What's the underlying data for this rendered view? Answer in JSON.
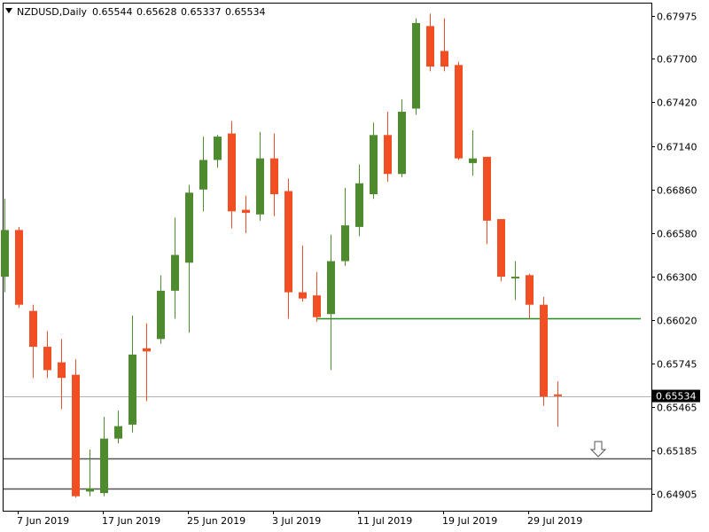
{
  "header": {
    "symbol_label": "NZDUSD,Daily",
    "open": "0.65544",
    "high": "0.65628",
    "low": "0.65337",
    "close": "0.65534"
  },
  "chart_data": {
    "type": "candlestick",
    "symbol": "NZDUSD",
    "timeframe": "Daily",
    "title": "NZDUSD,Daily",
    "ylim": [
      0.648,
      0.681
    ],
    "y_ticks": [
      0.67975,
      0.677,
      0.6742,
      0.6714,
      0.6686,
      0.6658,
      0.663,
      0.6602,
      0.65745,
      0.65465,
      0.65185,
      0.64905
    ],
    "y_tick_labels": [
      "0.67975",
      "0.67700",
      "0.67420",
      "0.67140",
      "0.66860",
      "0.66580",
      "0.66300",
      "0.66020",
      "0.65745",
      "0.65465",
      "0.65185",
      "0.64905"
    ],
    "x_tick_labels": [
      {
        "label": "7 Jun 2019",
        "bar": 1
      },
      {
        "label": "17 Jun 2019",
        "bar": 7
      },
      {
        "label": "25 Jun 2019",
        "bar": 13
      },
      {
        "label": "3 Jul 2019",
        "bar": 19
      },
      {
        "label": "11 Jul 2019",
        "bar": 25
      },
      {
        "label": "19 Jul 2019",
        "bar": 31
      },
      {
        "label": "29 Jul 2019",
        "bar": 37
      }
    ],
    "bull_color": "#4e8a2e",
    "bear_color": "#f24e23",
    "candles": [
      {
        "o": 0.663,
        "h": 0.668,
        "l": 0.662,
        "c": 0.666
      },
      {
        "o": 0.666,
        "h": 0.6662,
        "l": 0.661,
        "c": 0.6612
      },
      {
        "o": 0.6608,
        "h": 0.6612,
        "l": 0.6565,
        "c": 0.6585
      },
      {
        "o": 0.6585,
        "h": 0.6595,
        "l": 0.6565,
        "c": 0.657
      },
      {
        "o": 0.6575,
        "h": 0.659,
        "l": 0.6545,
        "c": 0.6565
      },
      {
        "o": 0.6567,
        "h": 0.6577,
        "l": 0.6488,
        "c": 0.6489
      },
      {
        "o": 0.6492,
        "h": 0.6519,
        "l": 0.6489,
        "c": 0.6494
      },
      {
        "o": 0.6491,
        "h": 0.654,
        "l": 0.6489,
        "c": 0.6526
      },
      {
        "o": 0.6526,
        "h": 0.6544,
        "l": 0.6523,
        "c": 0.6534
      },
      {
        "o": 0.6535,
        "h": 0.6605,
        "l": 0.653,
        "c": 0.658
      },
      {
        "o": 0.6584,
        "h": 0.66,
        "l": 0.655,
        "c": 0.6582
      },
      {
        "o": 0.659,
        "h": 0.6631,
        "l": 0.6587,
        "c": 0.6621
      },
      {
        "o": 0.6621,
        "h": 0.6668,
        "l": 0.6603,
        "c": 0.6644
      },
      {
        "o": 0.6639,
        "h": 0.6689,
        "l": 0.6594,
        "c": 0.6684
      },
      {
        "o": 0.6686,
        "h": 0.672,
        "l": 0.6672,
        "c": 0.6705
      },
      {
        "o": 0.6705,
        "h": 0.6721,
        "l": 0.67,
        "c": 0.672
      },
      {
        "o": 0.6722,
        "h": 0.673,
        "l": 0.6661,
        "c": 0.6672
      },
      {
        "o": 0.6673,
        "h": 0.6682,
        "l": 0.6658,
        "c": 0.6671
      },
      {
        "o": 0.667,
        "h": 0.6723,
        "l": 0.6666,
        "c": 0.6706
      },
      {
        "o": 0.6706,
        "h": 0.6722,
        "l": 0.6669,
        "c": 0.6683
      },
      {
        "o": 0.6685,
        "h": 0.6693,
        "l": 0.6603,
        "c": 0.662
      },
      {
        "o": 0.662,
        "h": 0.665,
        "l": 0.6614,
        "c": 0.6616
      },
      {
        "o": 0.6618,
        "h": 0.6633,
        "l": 0.6601,
        "c": 0.6604
      },
      {
        "o": 0.6606,
        "h": 0.6657,
        "l": 0.657,
        "c": 0.664
      },
      {
        "o": 0.664,
        "h": 0.6687,
        "l": 0.6637,
        "c": 0.6663
      },
      {
        "o": 0.6662,
        "h": 0.6702,
        "l": 0.6656,
        "c": 0.669
      },
      {
        "o": 0.6683,
        "h": 0.6729,
        "l": 0.668,
        "c": 0.6721
      },
      {
        "o": 0.6721,
        "h": 0.6736,
        "l": 0.6691,
        "c": 0.6696
      },
      {
        "o": 0.6696,
        "h": 0.6744,
        "l": 0.6694,
        "c": 0.6736
      },
      {
        "o": 0.6738,
        "h": 0.6796,
        "l": 0.6734,
        "c": 0.6793
      },
      {
        "o": 0.6791,
        "h": 0.6799,
        "l": 0.6762,
        "c": 0.6765
      },
      {
        "o": 0.6775,
        "h": 0.6796,
        "l": 0.6762,
        "c": 0.6765
      },
      {
        "o": 0.6766,
        "h": 0.6768,
        "l": 0.6705,
        "c": 0.6706
      },
      {
        "o": 0.6703,
        "h": 0.6724,
        "l": 0.6695,
        "c": 0.6706
      },
      {
        "o": 0.6707,
        "h": 0.6707,
        "l": 0.6651,
        "c": 0.6666
      },
      {
        "o": 0.6667,
        "h": 0.6667,
        "l": 0.6627,
        "c": 0.663
      },
      {
        "o": 0.663,
        "h": 0.664,
        "l": 0.6615,
        "c": 0.663
      },
      {
        "o": 0.6631,
        "h": 0.6632,
        "l": 0.6603,
        "c": 0.6612
      },
      {
        "o": 0.6612,
        "h": 0.6617,
        "l": 0.6547,
        "c": 0.6553
      },
      {
        "o": 0.65544,
        "h": 0.65628,
        "l": 0.65337,
        "c": 0.65534
      }
    ],
    "horizontal_lines": [
      {
        "name": "support-line",
        "price": 0.66035,
        "color": "#228b22"
      },
      {
        "name": "current-price-line",
        "price": 0.65534,
        "color": "#999999"
      },
      {
        "name": "level-line-1",
        "price": 0.6513,
        "color": "#555555"
      },
      {
        "name": "level-line-2",
        "price": 0.6494,
        "color": "#555555"
      }
    ],
    "current_price_label": "0.65534",
    "annotations": [
      {
        "type": "down-arrow",
        "near_price": 0.6519
      }
    ]
  }
}
